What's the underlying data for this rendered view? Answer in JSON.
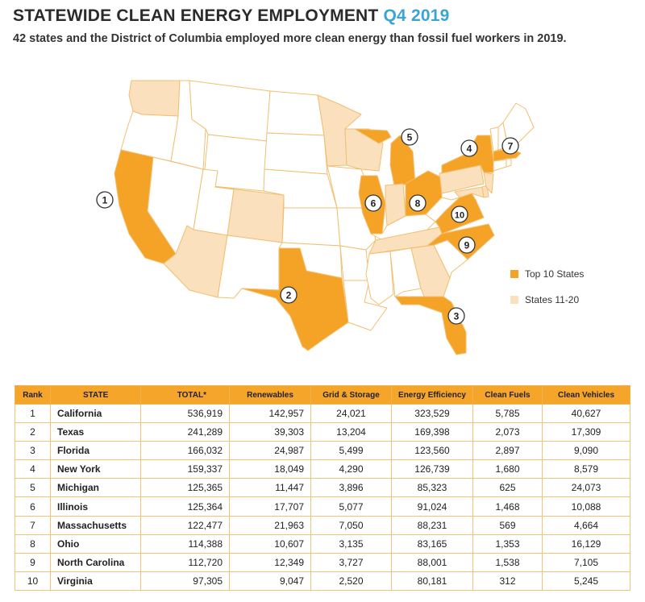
{
  "title": {
    "main": "STATEWIDE CLEAN ENERGY EMPLOYMENT",
    "accent": "Q4 2019"
  },
  "subtitle": "42 states and the District of Columbia employed more clean energy than fossil fuel workers in 2019.",
  "colors": {
    "top10": "#f5a327",
    "states11_20": "#fbe0bd",
    "other": "#ffffff",
    "border": "#f1bf70",
    "accent": "#3aa3d8"
  },
  "legend": [
    {
      "label": "Top 10 States",
      "color": "#f5a327"
    },
    {
      "label": "States 11-20",
      "color": "#fbe0bd"
    }
  ],
  "map": {
    "markers": [
      {
        "number": "1",
        "state": "California"
      },
      {
        "number": "2",
        "state": "Texas"
      },
      {
        "number": "3",
        "state": "Florida"
      },
      {
        "number": "4",
        "state": "New York"
      },
      {
        "number": "5",
        "state": "Michigan"
      },
      {
        "number": "6",
        "state": "Illinois"
      },
      {
        "number": "7",
        "state": "Massachusetts"
      },
      {
        "number": "8",
        "state": "Ohio"
      },
      {
        "number": "9",
        "state": "North Carolina"
      },
      {
        "number": "10",
        "state": "Virginia"
      }
    ]
  },
  "table": {
    "headers": [
      "Rank",
      "STATE",
      "TOTAL*",
      "Renewables",
      "Grid & Storage",
      "Energy Efficiency",
      "Clean Fuels",
      "Clean Vehicles"
    ],
    "rows": [
      [
        "1",
        "California",
        "536,919",
        "142,957",
        "24,021",
        "323,529",
        "5,785",
        "40,627"
      ],
      [
        "2",
        "Texas",
        "241,289",
        "39,303",
        "13,204",
        "169,398",
        "2,073",
        "17,309"
      ],
      [
        "3",
        "Florida",
        "166,032",
        "24,987",
        "5,499",
        "123,560",
        "2,897",
        "9,090"
      ],
      [
        "4",
        "New York",
        "159,337",
        "18,049",
        "4,290",
        "126,739",
        "1,680",
        "8,579"
      ],
      [
        "5",
        "Michigan",
        "125,365",
        "11,447",
        "3,896",
        "85,323",
        "625",
        "24,073"
      ],
      [
        "6",
        "Illinois",
        "125,364",
        "17,707",
        "5,077",
        "91,024",
        "1,468",
        "10,088"
      ],
      [
        "7",
        "Massachusetts",
        "122,477",
        "21,963",
        "7,050",
        "88,231",
        "569",
        "4,664"
      ],
      [
        "8",
        "Ohio",
        "114,388",
        "10,607",
        "3,135",
        "83,165",
        "1,353",
        "16,129"
      ],
      [
        "9",
        "North Carolina",
        "112,720",
        "12,349",
        "3,727",
        "88,001",
        "1,538",
        "7,105"
      ],
      [
        "10",
        "Virginia",
        "97,305",
        "9,047",
        "2,520",
        "80,181",
        "312",
        "5,245"
      ]
    ]
  }
}
